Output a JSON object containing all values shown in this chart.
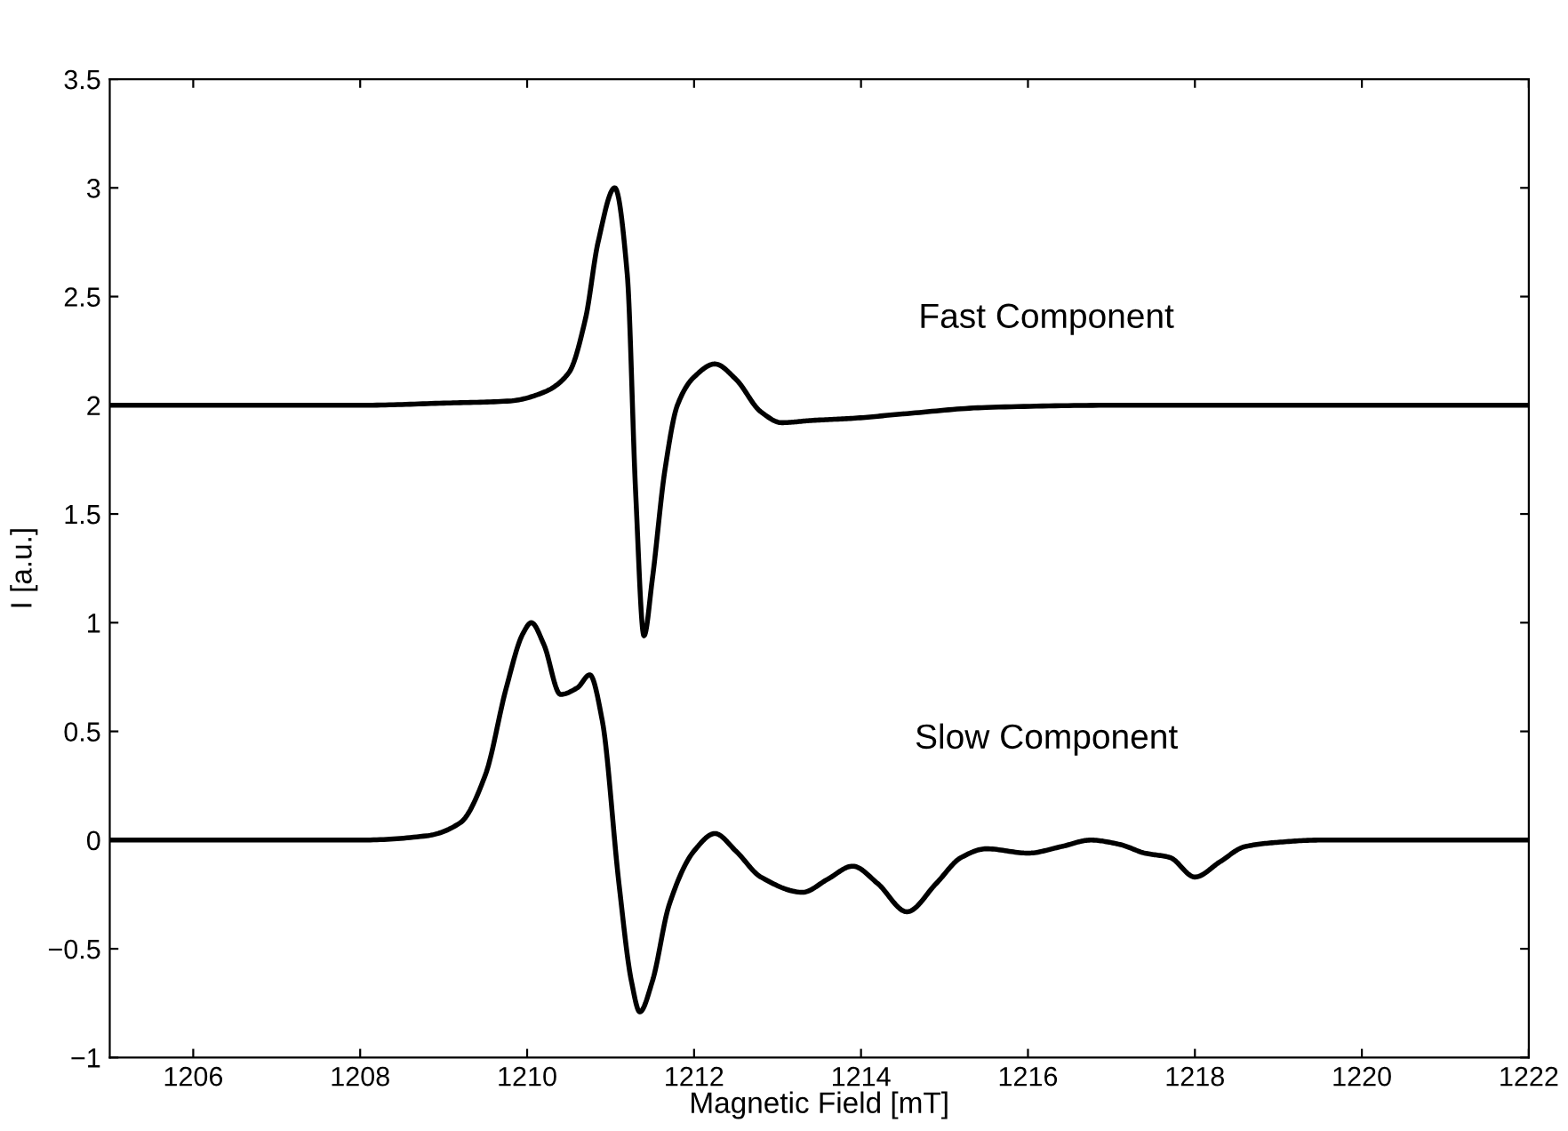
{
  "chart_data": {
    "type": "line",
    "xlabel": "Magnetic Field [mT]",
    "ylabel": "I [a.u.]",
    "xlim": [
      1205,
      1222
    ],
    "xticks": [
      1206,
      1208,
      1210,
      1212,
      1214,
      1216,
      1218,
      1220,
      1222
    ],
    "ylim": [
      -1,
      3.5
    ],
    "yticks": [
      {
        "value": -1,
        "label": "−1"
      },
      {
        "value": -0.5,
        "label": "−0.5"
      },
      0,
      0.5,
      1,
      1.5,
      2,
      2.5,
      3,
      3.5
    ],
    "grid": false,
    "legend": false,
    "marker": "none",
    "line_style": "solid",
    "annotations": [
      "Fast Component",
      "Slow Component"
    ],
    "series": [
      {
        "color": "#000000",
        "x": [
          1205,
          1208,
          1209,
          1209.8,
          1210.2,
          1210.5,
          1210.7,
          1210.85,
          1211.05,
          1211.2,
          1211.3,
          1211.4,
          1211.5,
          1211.65,
          1211.8,
          1212.0,
          1212.25,
          1212.5,
          1212.8,
          1213.05,
          1213.4,
          1213.9,
          1214.5,
          1215.5,
          1217,
          1222
        ],
        "values": [
          2,
          2,
          2.01,
          2.02,
          2.06,
          2.15,
          2.4,
          2.75,
          3.0,
          2.6,
          1.6,
          0.94,
          1.2,
          1.7,
          2.0,
          2.13,
          2.19,
          2.12,
          1.97,
          1.92,
          1.93,
          1.94,
          1.96,
          1.99,
          2.0,
          2.0
        ]
      },
      {
        "color": "#000000",
        "x": [
          1205,
          1208,
          1208.8,
          1209.2,
          1209.5,
          1209.75,
          1209.95,
          1210.05,
          1210.2,
          1210.4,
          1210.6,
          1210.75,
          1210.9,
          1211.1,
          1211.25,
          1211.35,
          1211.5,
          1211.7,
          1212.0,
          1212.25,
          1212.5,
          1212.8,
          1213.3,
          1213.6,
          1213.9,
          1214.2,
          1214.55,
          1214.9,
          1215.2,
          1215.5,
          1216.0,
          1216.4,
          1216.75,
          1217.1,
          1217.4,
          1217.7,
          1218.0,
          1218.3,
          1218.6,
          1219.0,
          1219.5,
          1222
        ],
        "values": [
          0,
          0,
          0.02,
          0.08,
          0.3,
          0.7,
          0.95,
          1.0,
          0.9,
          0.67,
          0.7,
          0.76,
          0.55,
          -0.2,
          -0.65,
          -0.79,
          -0.65,
          -0.3,
          -0.05,
          0.03,
          -0.05,
          -0.17,
          -0.24,
          -0.18,
          -0.12,
          -0.2,
          -0.33,
          -0.2,
          -0.08,
          -0.04,
          -0.06,
          -0.03,
          0.0,
          -0.02,
          -0.06,
          -0.08,
          -0.17,
          -0.1,
          -0.03,
          -0.01,
          0,
          0
        ]
      }
    ]
  }
}
